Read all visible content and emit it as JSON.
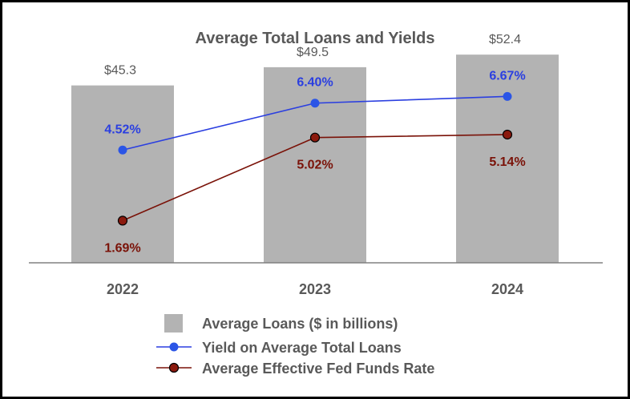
{
  "chart_data": {
    "type": "bar",
    "title": "Average Total Loans and Yields",
    "categories": [
      "2022",
      "2023",
      "2024"
    ],
    "bars": {
      "name": "Average Loans ($ in billions)",
      "values": [
        45.3,
        49.5,
        52.4
      ],
      "labels": [
        "$45.3",
        "$49.5",
        "$52.4"
      ],
      "color": "#b3b3b3"
    },
    "lines": [
      {
        "name": "Yield on Average Total Loans",
        "values": [
          4.52,
          6.4,
          6.67
        ],
        "labels": [
          "4.52%",
          "6.40%",
          "6.67%"
        ],
        "color": "#2b3fe0",
        "marker_fill": "#2b55e6",
        "label_position": "above"
      },
      {
        "name": "Average Effective Fed Funds Rate",
        "values": [
          1.69,
          5.02,
          5.14
        ],
        "labels": [
          "1.69%",
          "5.02%",
          "5.14%"
        ],
        "color": "#7a1208",
        "marker_fill": "#8b1a0e",
        "label_position": "below"
      }
    ],
    "bar_axis_max": 60,
    "line_axis_range": [
      0,
      9.7
    ],
    "legend_position": "bottom",
    "text_color": "#595959",
    "axis_color": "#808080"
  }
}
